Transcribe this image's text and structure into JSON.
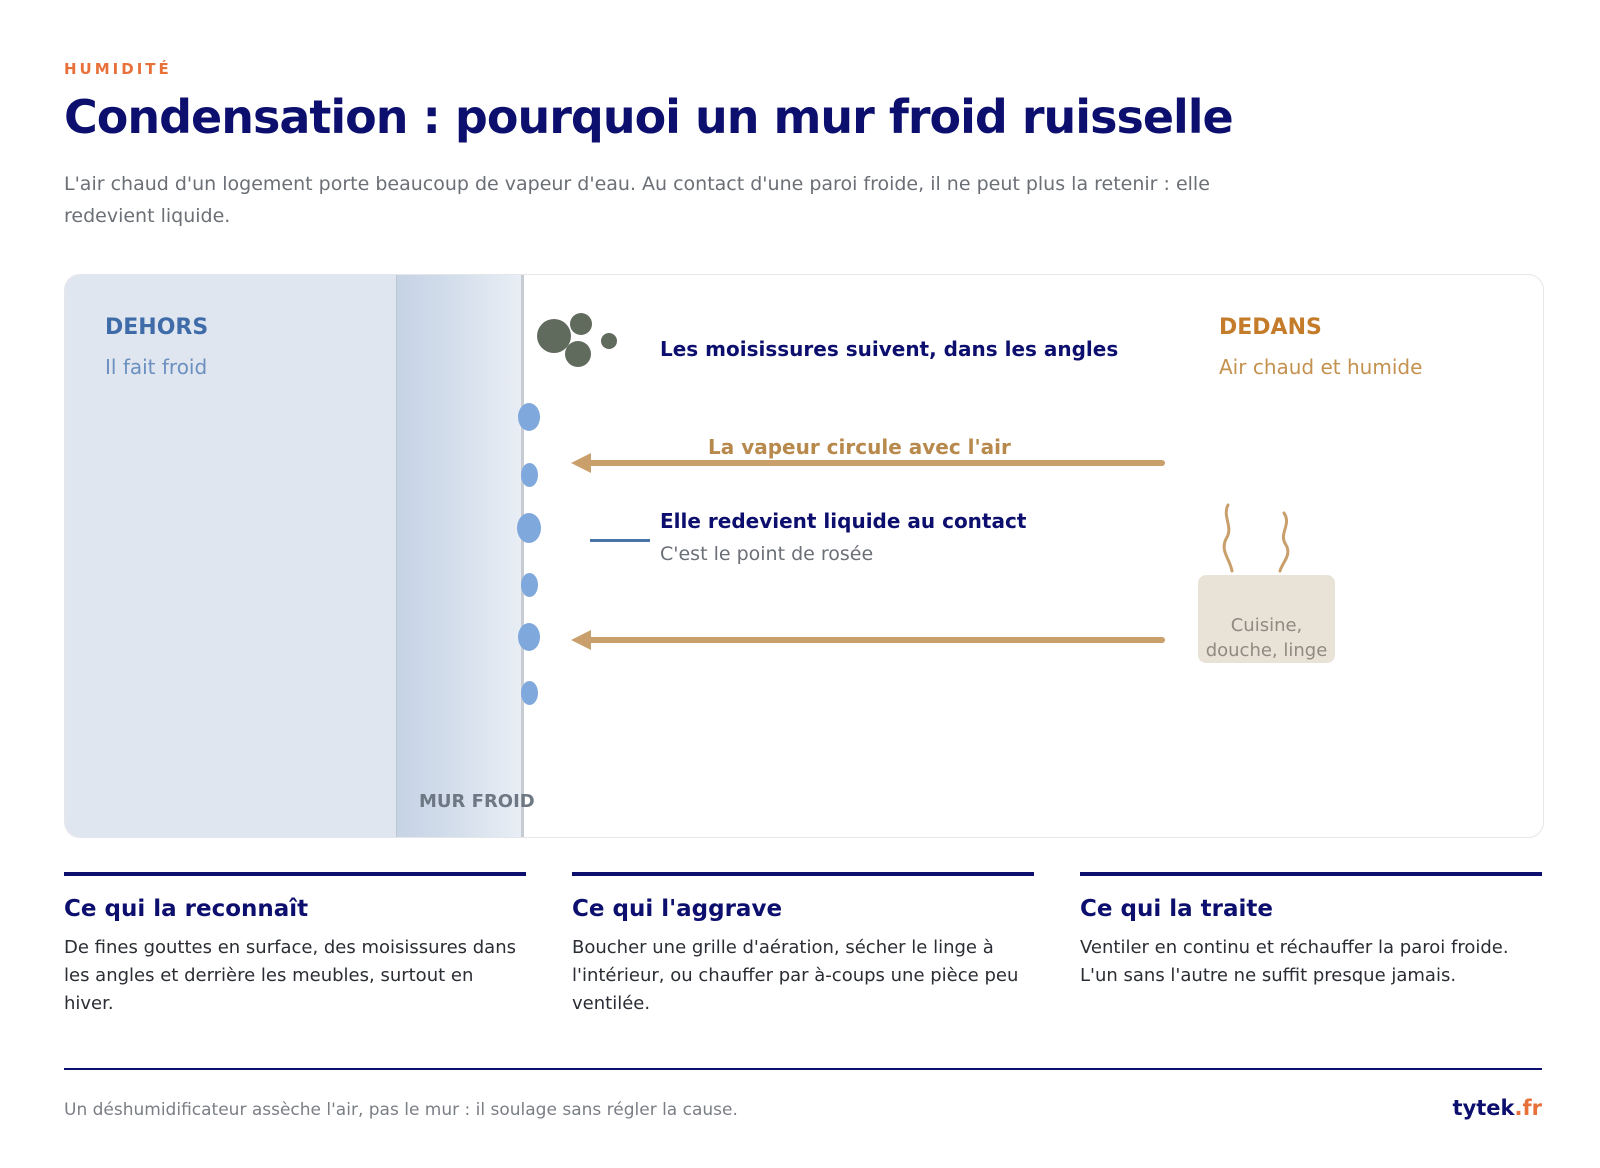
{
  "header": {
    "eyebrow": "HUMIDITÉ",
    "title": "Condensation : pourquoi un mur froid ruisselle",
    "lede": "L'air chaud d'un logement porte beaucoup de vapeur d'eau. Au contact d'une paroi froide, il ne peut plus la retenir : elle redevient liquide."
  },
  "diagram": {
    "outside": {
      "title": "DEHORS",
      "subtitle": "Il fait froid"
    },
    "wall": {
      "label": "MUR FROID"
    },
    "mold": {
      "label": "Les moisissures suivent, dans les angles"
    },
    "vapor": {
      "label": "La vapeur circule avec l'air"
    },
    "contact": {
      "title": "Elle redevient liquide au contact",
      "subtitle": "C'est le point de rosée"
    },
    "inside": {
      "title": "DEDANS",
      "subtitle": "Air chaud et humide"
    },
    "source": {
      "label": "Cuisine, douche, linge"
    },
    "colors": {
      "outside": "#dfe6ef",
      "wall": "#c6d3e5",
      "droplet": "#7fa8dc",
      "vapor": "#c99f6c",
      "mold": "#606a5d",
      "accent": "#e8713a",
      "navy": "#0d0f6e"
    }
  },
  "cards": [
    {
      "title": "Ce qui la reconnaît",
      "body": "De fines gouttes en surface, des moisissures dans les angles et derrière les meubles, surtout en hiver."
    },
    {
      "title": "Ce qui l'aggrave",
      "body": "Boucher une grille d'aération, sécher le linge à l'intérieur, ou chauffer par à-coups une pièce peu ventilée."
    },
    {
      "title": "Ce qui la traite",
      "body": "Ventiler en continu et réchauffer la paroi froide. L'un sans l'autre ne suffit presque jamais."
    }
  ],
  "footer": {
    "note": "Un déshumidificateur assèche l'air, pas le mur : il soulage sans régler la cause.",
    "brand_main": "tytek",
    "brand_tld": ".fr"
  }
}
